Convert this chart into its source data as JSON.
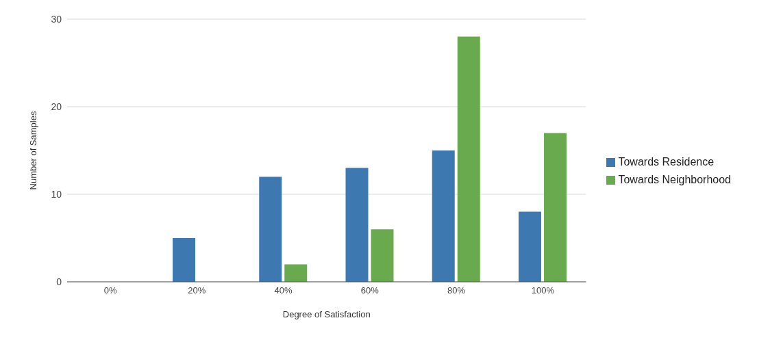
{
  "chart_data": {
    "type": "bar",
    "xlabel": "Degree of Satisfaction",
    "ylabel": "Number of Samples",
    "categories": [
      "0%",
      "20%",
      "40%",
      "60%",
      "80%",
      "100%"
    ],
    "series": [
      {
        "name": "Towards Residence",
        "color": "#3d78b0",
        "values": [
          0,
          5,
          12,
          13,
          15,
          8
        ]
      },
      {
        "name": "Towards Neighborhood",
        "color": "#6aaa4f",
        "values": [
          0,
          0,
          2,
          6,
          28,
          17
        ]
      }
    ],
    "ylim": [
      0,
      30
    ],
    "yticks": [
      0,
      10,
      20,
      30
    ],
    "grid": "y",
    "legend": "right"
  }
}
